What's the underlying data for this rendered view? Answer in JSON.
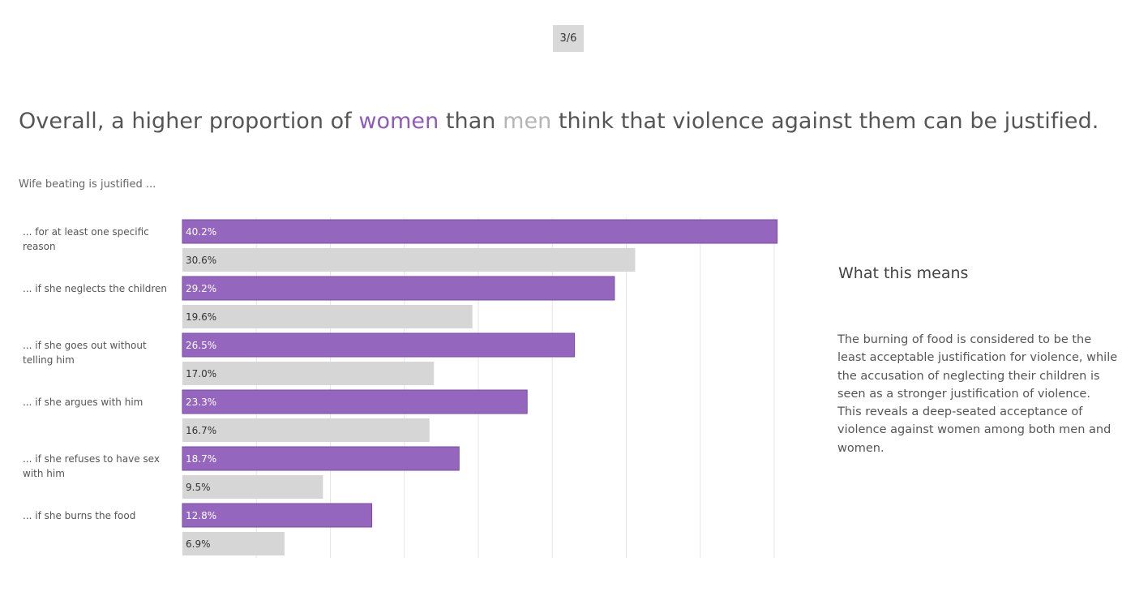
{
  "page_indicator": "3/6",
  "headline": {
    "part1": "Overall, a higher proportion of ",
    "women": "women",
    "part2": " than ",
    "men": "men",
    "part3": " think that violence against them can be justified."
  },
  "side_panel": {
    "title": "What this means",
    "paragraph1": "The burning of food is considered to be the least acceptable justification for violence, while the accusation of neglecting their children is seen as a stronger justification of violence.",
    "paragraph2": "This reveals a deep-seated acceptance of violence against women among both men and women."
  },
  "colors": {
    "women": "#9466bd",
    "men": "#d6d6d6",
    "gridline": "#e6e6e6"
  },
  "chart_data": {
    "type": "bar",
    "orientation": "horizontal",
    "subtitle": "Wife beating is justified ...",
    "categories": [
      "... for at least one specific reason",
      "... if she neglects the children",
      "... if she goes out without telling him",
      "... if she argues with him",
      "... if she refuses to have sex with him",
      "... if she burns the food"
    ],
    "series": [
      {
        "name": "women",
        "values": [
          40.2,
          29.2,
          26.5,
          23.3,
          18.7,
          12.8
        ],
        "labels": [
          "40.2%",
          "29.2%",
          "26.5%",
          "23.3%",
          "18.7%",
          "12.8%"
        ]
      },
      {
        "name": "men",
        "values": [
          30.6,
          19.6,
          17.0,
          16.7,
          9.5,
          6.9
        ],
        "labels": [
          "30.6%",
          "19.6%",
          "17.0%",
          "16.7%",
          "9.5%",
          "6.9%"
        ]
      }
    ],
    "xlim": [
      0,
      40
    ],
    "gridlines": [
      5,
      10,
      15,
      20,
      25,
      30,
      35,
      40
    ],
    "grid": true,
    "axes_visible": false
  }
}
